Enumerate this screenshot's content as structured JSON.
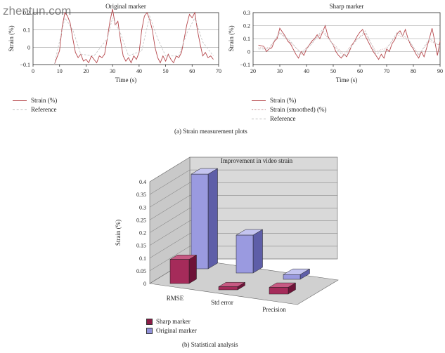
{
  "watermark": "zhentun.com",
  "caption_a": "(a)  Strain measurement plots",
  "caption_b": "(b)  Statistical analysis",
  "colors": {
    "strain": "#b5454a",
    "reference": "#c7c7c7",
    "sharp": "#8b1c46",
    "original": "#9090d8"
  },
  "chart_data": [
    {
      "type": "line",
      "title": "Original marker",
      "xlabel": "Time (s)",
      "ylabel": "Strain (%)",
      "xlim": [
        0,
        70
      ],
      "ylim": [
        -0.1,
        0.2
      ],
      "xticks": [
        0,
        10,
        20,
        30,
        40,
        50,
        60,
        70
      ],
      "yticks": [
        -0.1,
        0,
        0.1,
        0.2
      ],
      "ytick_labels": [
        "−0.1",
        "0",
        "0.1",
        "0.2"
      ],
      "grid": true,
      "legend": [
        "Strain (%)",
        "Reference"
      ],
      "series": [
        {
          "name": "Strain (%)",
          "x": [
            8,
            9,
            10,
            11,
            12,
            13,
            14,
            15,
            16,
            17,
            18,
            19,
            20,
            21,
            22,
            23,
            24,
            25,
            26,
            27,
            28,
            29,
            30,
            31,
            32,
            33,
            34,
            35,
            36,
            37,
            38,
            39,
            40,
            41,
            42,
            43,
            44,
            45,
            46,
            47,
            48,
            49,
            50,
            51,
            52,
            53,
            54,
            55,
            56,
            57,
            58,
            59,
            60,
            61,
            62,
            63,
            64,
            65,
            66,
            67,
            68
          ],
          "y": [
            -0.1,
            -0.06,
            -0.02,
            0.12,
            0.2,
            0.18,
            0.14,
            0.05,
            -0.03,
            -0.06,
            -0.04,
            -0.08,
            -0.07,
            -0.09,
            -0.05,
            -0.07,
            -0.09,
            -0.05,
            -0.06,
            -0.04,
            0.05,
            0.15,
            0.22,
            0.13,
            0.15,
            0.04,
            -0.05,
            -0.08,
            -0.06,
            -0.09,
            -0.05,
            -0.07,
            -0.03,
            0.1,
            0.18,
            0.2,
            0.16,
            0.1,
            0.0,
            -0.06,
            -0.09,
            -0.05,
            -0.08,
            -0.04,
            -0.07,
            -0.09,
            -0.05,
            -0.06,
            -0.03,
            0.05,
            0.13,
            0.19,
            0.17,
            0.2,
            0.1,
            0.02,
            -0.05,
            -0.03,
            -0.06,
            -0.05,
            -0.07
          ]
        },
        {
          "name": "Reference",
          "x": [
            8,
            12,
            15,
            18,
            23,
            28,
            30,
            33,
            36,
            41,
            44,
            47,
            50,
            55,
            58,
            61,
            64,
            68
          ],
          "y": [
            -0.1,
            0.17,
            0.1,
            -0.04,
            -0.05,
            0.05,
            0.17,
            0.08,
            -0.05,
            -0.02,
            0.18,
            0.05,
            -0.05,
            -0.05,
            0.08,
            0.17,
            0.03,
            -0.05
          ]
        }
      ]
    },
    {
      "type": "line",
      "title": "Sharp marker",
      "xlabel": "Time (s)",
      "ylabel": "Strain (%)",
      "xlim": [
        20,
        90
      ],
      "ylim": [
        -0.1,
        0.3
      ],
      "xticks": [
        20,
        30,
        40,
        50,
        60,
        70,
        80,
        90
      ],
      "yticks": [
        -0.1,
        0,
        0.1,
        0.2,
        0.3
      ],
      "ytick_labels": [
        "−0.1",
        "0",
        "0.1",
        "0.2",
        "0.3"
      ],
      "grid": true,
      "legend": [
        "Strain (%)",
        "Strain (smoothed) (%)",
        "Reference"
      ],
      "series": [
        {
          "name": "Strain (%)",
          "x": [
            22,
            24,
            25,
            26,
            27,
            28,
            29,
            30,
            31,
            32,
            33,
            34,
            35,
            36,
            37,
            38,
            39,
            40,
            41,
            42,
            43,
            44,
            45,
            46,
            47,
            48,
            49,
            50,
            51,
            52,
            53,
            54,
            55,
            56,
            57,
            58,
            59,
            60,
            61,
            62,
            63,
            64,
            65,
            66,
            67,
            68,
            69,
            70,
            71,
            72,
            73,
            74,
            75,
            76,
            77,
            78,
            79,
            80,
            81,
            82,
            83,
            84,
            85,
            86,
            87,
            88,
            89,
            90
          ],
          "y": [
            0.05,
            0.04,
            0.0,
            0.02,
            0.03,
            0.08,
            0.1,
            0.18,
            0.15,
            0.12,
            0.08,
            0.06,
            0.02,
            -0.02,
            -0.05,
            0.0,
            -0.03,
            0.02,
            0.05,
            0.08,
            0.1,
            0.13,
            0.1,
            0.15,
            0.2,
            0.12,
            0.08,
            0.05,
            0.0,
            -0.03,
            -0.05,
            -0.02,
            -0.04,
            0.0,
            0.05,
            0.08,
            0.12,
            0.15,
            0.17,
            0.12,
            0.08,
            0.04,
            0.0,
            -0.03,
            -0.06,
            -0.02,
            -0.05,
            0.02,
            0.0,
            0.06,
            0.09,
            0.14,
            0.16,
            0.12,
            0.17,
            0.1,
            0.05,
            0.02,
            -0.02,
            -0.05,
            0.0,
            -0.04,
            0.03,
            0.1,
            0.18,
            0.08,
            -0.03,
            0.08
          ]
        },
        {
          "name": "Strain (smoothed) (%)",
          "x": [
            22,
            26,
            30,
            34,
            38,
            42,
            46,
            50,
            54,
            58,
            62,
            66,
            70,
            74,
            78,
            82,
            86,
            90
          ],
          "y": [
            0.03,
            0.03,
            0.14,
            0.07,
            -0.01,
            0.07,
            0.15,
            0.06,
            -0.02,
            0.08,
            0.14,
            0.0,
            0.03,
            0.13,
            0.09,
            -0.02,
            0.08,
            0.05
          ]
        },
        {
          "name": "Reference",
          "x": [
            22,
            26,
            30,
            34,
            38,
            42,
            46,
            50,
            54,
            58,
            62,
            66,
            70,
            74,
            78,
            82,
            86,
            90
          ],
          "y": [
            0.02,
            0.02,
            0.15,
            0.08,
            -0.02,
            0.06,
            0.17,
            0.05,
            -0.04,
            0.07,
            0.16,
            -0.02,
            0.02,
            0.15,
            0.1,
            -0.03,
            0.1,
            0.04
          ]
        }
      ]
    },
    {
      "type": "bar",
      "title": "Improvement in video strain",
      "ylabel": "Strain (%)",
      "categories": [
        "RMSE",
        "Std error",
        "Precision"
      ],
      "ylim": [
        0,
        0.4
      ],
      "yticks": [
        0,
        0.05,
        0.1,
        0.15,
        0.2,
        0.25,
        0.3,
        0.35,
        0.4
      ],
      "grid": true,
      "legend": [
        "Sharp marker",
        "Original marker"
      ],
      "series": [
        {
          "name": "Sharp marker",
          "values": [
            0.1,
            0.013,
            0.028
          ]
        },
        {
          "name": "Original marker",
          "values": [
            0.4,
            0.16,
            0.02
          ]
        }
      ]
    }
  ]
}
